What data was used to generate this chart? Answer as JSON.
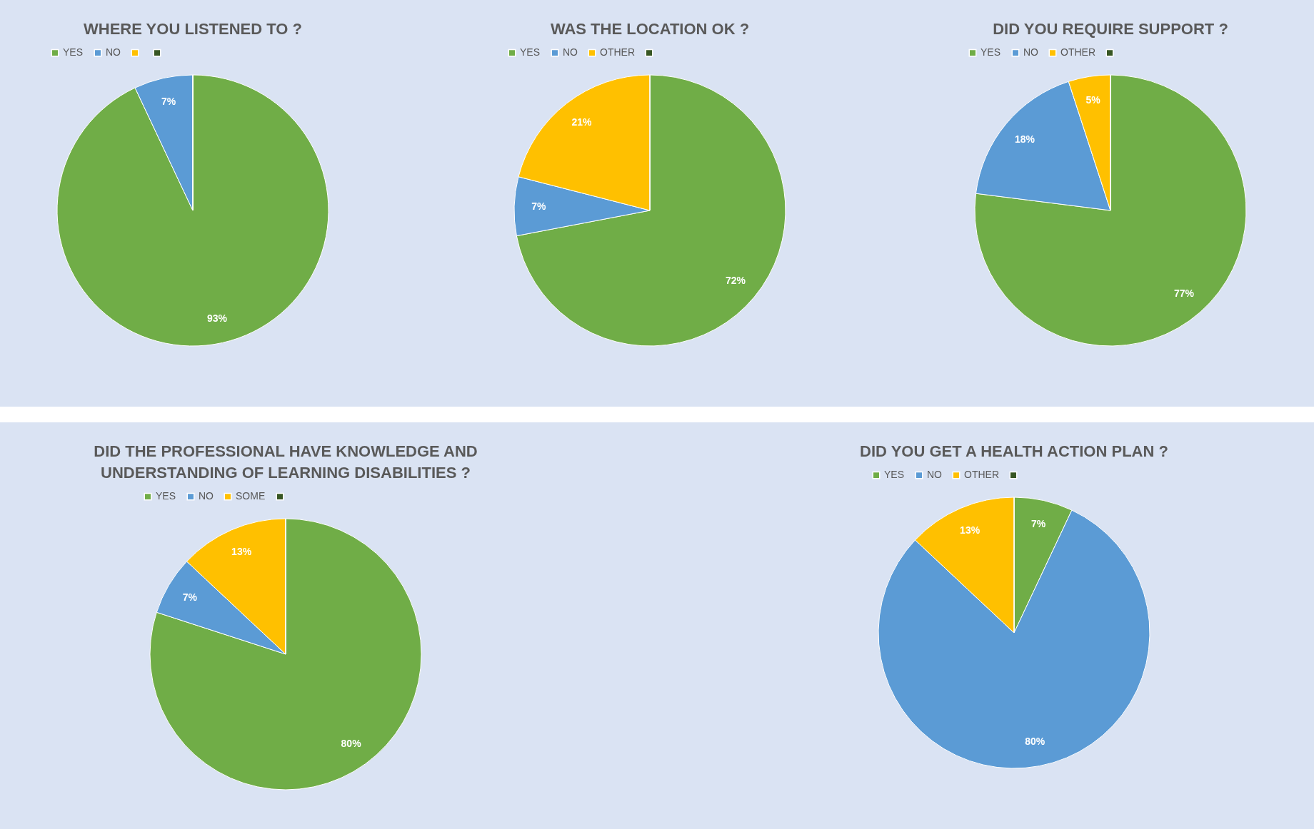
{
  "chart_data": [
    {
      "type": "pie",
      "title": "WHERE YOU LISTENED TO ?",
      "categories": [
        "YES",
        "NO",
        null,
        null
      ],
      "values": [
        93,
        7,
        0,
        0
      ],
      "colors": [
        "#70ad47",
        "#5b9bd5",
        "#ffc000",
        "#375623"
      ],
      "value_labels": [
        "93%",
        "7%",
        null,
        null
      ],
      "legend": "top"
    },
    {
      "type": "pie",
      "title": "WAS THE LOCATION OK ?",
      "categories": [
        "YES",
        "NO",
        "OTHER",
        null
      ],
      "values": [
        72,
        7,
        21,
        0
      ],
      "colors": [
        "#70ad47",
        "#5b9bd5",
        "#ffc000",
        "#375623"
      ],
      "value_labels": [
        "72%",
        "7%",
        "21%",
        null
      ],
      "legend": "top"
    },
    {
      "type": "pie",
      "title": "DID YOU REQUIRE SUPPORT ?",
      "categories": [
        "YES",
        "NO",
        "OTHER",
        null
      ],
      "values": [
        77,
        18,
        5,
        0
      ],
      "colors": [
        "#70ad47",
        "#5b9bd5",
        "#ffc000",
        "#375623"
      ],
      "value_labels": [
        "77%",
        "18%",
        "5%",
        null
      ],
      "legend": "top"
    },
    {
      "type": "pie",
      "title": "DID THE PROFESSIONAL HAVE KNOWLEDGE AND UNDERSTANDING OF LEARNING DISABILITIES ?",
      "categories": [
        "YES",
        "NO",
        "SOME",
        null
      ],
      "values": [
        80,
        7,
        13,
        0
      ],
      "colors": [
        "#70ad47",
        "#5b9bd5",
        "#ffc000",
        "#375623"
      ],
      "value_labels": [
        "80%",
        "7%",
        "13%",
        null
      ],
      "legend": "top"
    },
    {
      "type": "pie",
      "title": "DID YOU GET A HEALTH ACTION PLAN ?",
      "categories": [
        "YES",
        "NO",
        "OTHER",
        null
      ],
      "values": [
        7,
        80,
        13,
        0
      ],
      "colors": [
        "#70ad47",
        "#5b9bd5",
        "#ffc000",
        "#375623"
      ],
      "value_labels": [
        "7%",
        "80%",
        "13%",
        null
      ],
      "legend": "top"
    }
  ]
}
